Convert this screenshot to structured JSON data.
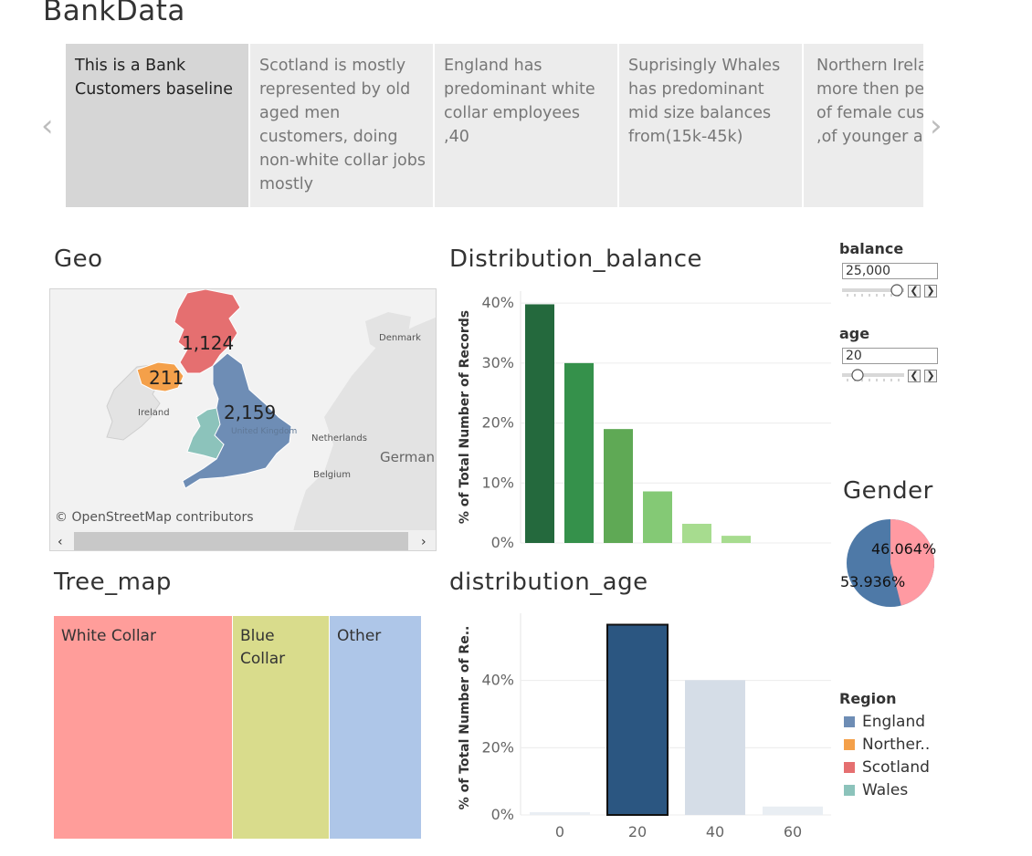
{
  "app": {
    "title": "BankData"
  },
  "story": {
    "points": [
      {
        "text": "This is a Bank Customers baseline",
        "active": true
      },
      {
        "text": "Scotland is mostly represented by old aged men customers, doing non-white collar jobs mostly",
        "active": false
      },
      {
        "text": "England has predominant white collar employees ,40",
        "active": false
      },
      {
        "text": "Suprisingly Whales has predominant mid size balances from(15k-45k)",
        "active": false
      },
      {
        "text": "Northern Ireland has more then per cent of female customers ,of younger age g",
        "active": false
      }
    ],
    "prev_icon": "chevron-left-icon",
    "next_icon": "chevron-right-icon"
  },
  "geo": {
    "title": "Geo",
    "labels": {
      "scotland": "1,124",
      "northern_ireland": "211",
      "england": "2,159"
    },
    "place_labels": {
      "ireland": "Ireland",
      "uk": "United Kingdom",
      "denmark": "Denmark",
      "netherlands": "Netherlands",
      "belgium": "Belgium",
      "germany": "German"
    },
    "attribution": "© OpenStreetMap contributors",
    "colors": {
      "England": "#6e8db5",
      "Northern Ireland": "#f4a04a",
      "Scotland": "#e56f70",
      "Wales": "#8cc3bb",
      "land": "#e2e2e2",
      "sea": "#f0f0f0"
    }
  },
  "tree_map": {
    "title": "Tree_map",
    "cells": [
      {
        "label": "White Collar",
        "color": "#ff9d9a"
      },
      {
        "label": "Blue Collar",
        "color": "#d9dc8c"
      },
      {
        "label": "Other",
        "color": "#aec6e8"
      }
    ]
  },
  "controls": {
    "balance": {
      "label": "balance",
      "value": "25,000"
    },
    "age": {
      "label": "age",
      "value": "20"
    }
  },
  "gender": {
    "title": "Gender",
    "labels": [
      "46.064%",
      "53.936%"
    ],
    "colors": {
      "female": "#ff9aa2",
      "male": "#4e79a7"
    }
  },
  "region_legend": {
    "title": "Region",
    "items": [
      {
        "label": "England",
        "color": "#6e8db5"
      },
      {
        "label": "Norther..",
        "color": "#f4a04a"
      },
      {
        "label": "Scotland",
        "color": "#e56f70"
      },
      {
        "label": "Wales",
        "color": "#8cc3bb"
      }
    ]
  },
  "chart_data": [
    {
      "type": "bar",
      "title": "Distribution_balance",
      "ylabel": "% of Total Number of Records",
      "y_ticks": [
        "0%",
        "10%",
        "20%",
        "30%",
        "40%"
      ],
      "ylim": [
        0,
        42
      ],
      "values": [
        39.8,
        30.0,
        19.0,
        8.6,
        3.2,
        1.2
      ],
      "colors": [
        "#24693d",
        "#35914b",
        "#5fa955",
        "#84c975",
        "#a7dc8f",
        "#a7dc8f"
      ],
      "grid": true
    },
    {
      "type": "bar",
      "title": "distribution_age",
      "ylabel": "% of Total Number of Re..",
      "categories": [
        "0",
        "20",
        "40",
        "60"
      ],
      "y_ticks": [
        "0%",
        "20%",
        "40%"
      ],
      "ylim": [
        0,
        60
      ],
      "values": [
        0.8,
        56.6,
        40.1,
        2.5
      ],
      "colors": [
        "#e9eef3",
        "#2b5681",
        "#d5dde7",
        "#e9eef3"
      ],
      "highlighted": "20",
      "grid": true
    }
  ]
}
